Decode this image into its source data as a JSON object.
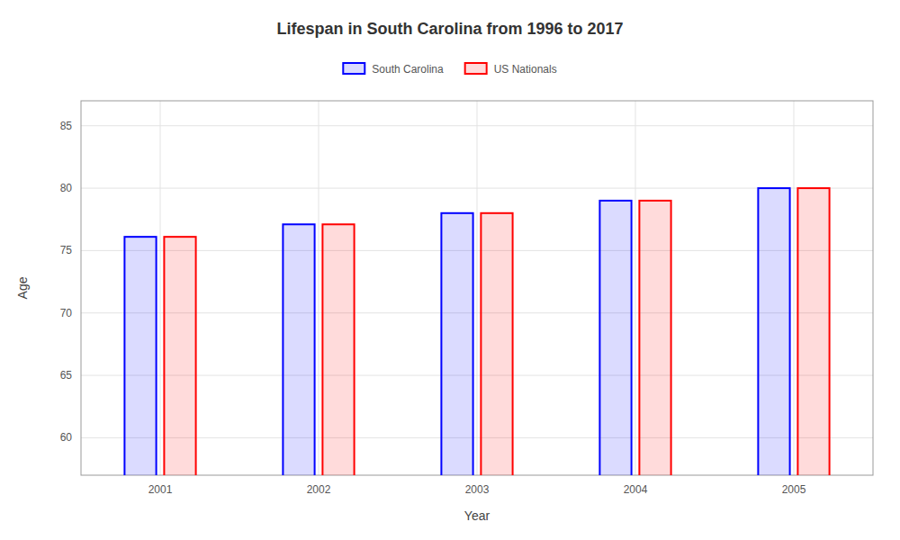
{
  "chart_data": {
    "type": "bar",
    "title": "Lifespan in South Carolina from 1996 to 2017",
    "xlabel": "Year",
    "ylabel": "Age",
    "categories": [
      "2001",
      "2002",
      "2003",
      "2004",
      "2005"
    ],
    "series": [
      {
        "name": "South Carolina",
        "color": "#0000ff",
        "values": [
          76.1,
          77.1,
          78.0,
          79.0,
          80.0
        ]
      },
      {
        "name": "US Nationals",
        "color": "#ff0000",
        "values": [
          76.1,
          77.1,
          78.0,
          79.0,
          80.0
        ]
      }
    ],
    "ylim": [
      57,
      87
    ],
    "yticks": [
      60,
      65,
      70,
      75,
      80,
      85
    ],
    "grid": true,
    "legend": "top"
  }
}
